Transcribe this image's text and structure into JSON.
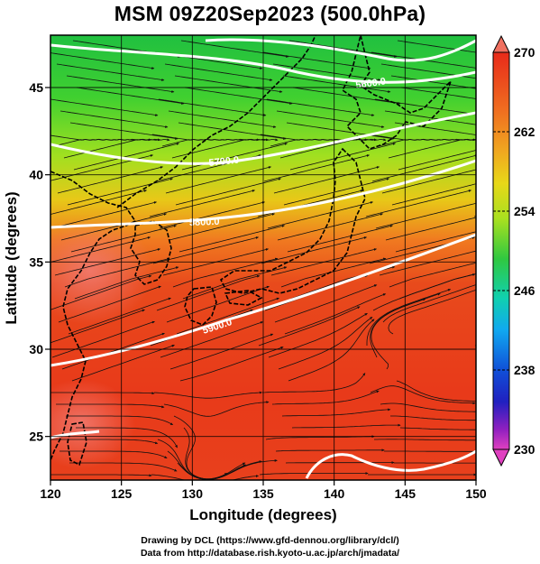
{
  "title": "MSM 09Z20Sep2023 (500.0hPa)",
  "x_axis": {
    "label": "Longitude (degrees)",
    "range": [
      120,
      150
    ],
    "ticks": [
      "120",
      "125",
      "130",
      "135",
      "140",
      "145",
      "150"
    ]
  },
  "y_axis": {
    "label": "Latitude  (degrees)",
    "range": [
      22.5,
      48
    ],
    "ticks": [
      "25",
      "30",
      "35",
      "40",
      "45"
    ]
  },
  "colorbar": {
    "range": [
      230,
      270
    ],
    "ticks": [
      "270",
      "262",
      "254",
      "246",
      "238",
      "230"
    ],
    "colors": [
      "#e040c0",
      "#8020c0",
      "#2020c0",
      "#1060e0",
      "#10b0f0",
      "#10d8b0",
      "#20c040",
      "#60d020",
      "#c0e020",
      "#f0d010",
      "#f0a020",
      "#f06020",
      "#e82a1a",
      "#f08070"
    ]
  },
  "contours": [
    {
      "label": "5600.0",
      "lat_ref": 46.5
    },
    {
      "label": "5700.0",
      "lat_ref": 42.5
    },
    {
      "label": "5800.0",
      "lat_ref": 37.7
    },
    {
      "label": "5900.0",
      "lat_ref": 31.2
    }
  ],
  "footer": {
    "line1": "Drawing by DCL (https://www.gfd-dennou.org/library/dcl/)",
    "line2": "Data from http://database.rish.kyoto-u.ac.jp/arch/jmadata/"
  }
}
